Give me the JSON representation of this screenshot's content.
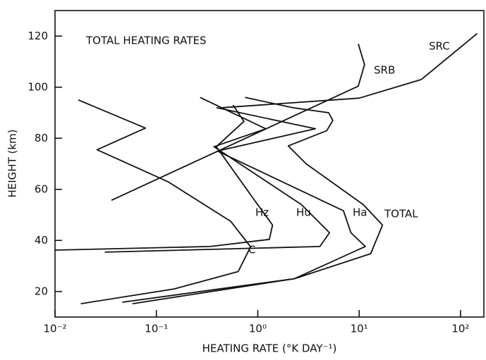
{
  "chart_data": {
    "type": "line",
    "title": "TOTAL HEATING RATES",
    "x_label": "HEATING RATE (°K DAY⁻¹)",
    "y_label": "HEIGHT (km)",
    "xscale": "log",
    "xlim": [
      0.01,
      170
    ],
    "ylim": [
      10,
      130
    ],
    "xticks": [
      {
        "value": 0.01,
        "label": "10⁻²"
      },
      {
        "value": 0.1,
        "label": "10⁻¹"
      },
      {
        "value": 1,
        "label": "10⁰"
      },
      {
        "value": 10,
        "label": "10¹"
      },
      {
        "value": 100,
        "label": "10²"
      }
    ],
    "yticks": [
      20,
      40,
      60,
      80,
      100,
      120
    ],
    "series": [
      {
        "name": "C",
        "color": "#111111",
        "x": [
          0.017,
          0.078,
          0.026,
          0.13,
          0.54,
          0.85,
          0.64,
          0.15,
          0.018
        ],
        "values": [
          95,
          84,
          75.5,
          63,
          47.5,
          37.5,
          27.8,
          21,
          15.2
        ]
      },
      {
        "name": "Hz",
        "color": "#111111",
        "x": [
          0.57,
          0.73,
          0.39,
          0.88,
          1.4,
          1.3,
          0.34,
          0.01
        ],
        "values": [
          93,
          86.6,
          76.7,
          57,
          46,
          40.4,
          37.6,
          36.2
        ]
      },
      {
        "name": "Hu",
        "color": "#111111",
        "x": [
          0.27,
          1.2,
          0.37,
          2.7,
          5.1,
          4.1,
          0.031
        ],
        "values": [
          96,
          83.7,
          76.7,
          54,
          43,
          37.6,
          35.4
        ]
      },
      {
        "name": "Ha",
        "color": "#111111",
        "x": [
          0.39,
          3.7,
          0.4,
          7.0,
          8.3,
          11.5,
          2.3,
          0.046
        ],
        "values": [
          92,
          83.7,
          75,
          51.6,
          43,
          37.6,
          25,
          15.8
        ]
      },
      {
        "name": "TOTAL",
        "color": "#111111",
        "x": [
          0.75,
          2.2,
          5.0,
          5.5,
          4.8,
          2.0,
          3.0,
          11,
          17,
          13,
          2.3,
          0.058
        ],
        "values": [
          96,
          92,
          90,
          87,
          83,
          77,
          70,
          54,
          46,
          34.8,
          25,
          15.2
        ]
      },
      {
        "name": "SRB",
        "color": "#111111",
        "x": [
          0.036,
          9.8,
          11.3,
          9.8
        ],
        "values": [
          55.7,
          100.4,
          108.8,
          117
        ]
      },
      {
        "name": "SRC",
        "color": "#111111",
        "x": [
          0.45,
          10,
          41,
          146
        ],
        "values": [
          92,
          95.7,
          103,
          121
        ]
      }
    ]
  }
}
